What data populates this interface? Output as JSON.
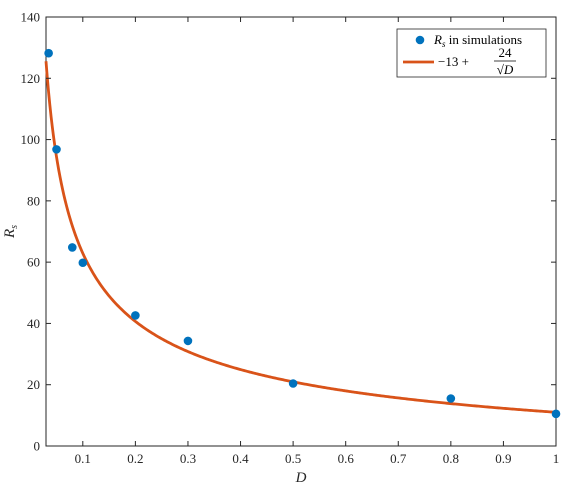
{
  "chart_data": {
    "type": "scatter",
    "xlabel": "D",
    "ylabel": "R",
    "ylabel_sub": "s",
    "xlim": [
      0.03,
      1.0
    ],
    "ylim": [
      0,
      140
    ],
    "xticks": [
      0.1,
      0.2,
      0.3,
      0.4,
      0.5,
      0.6,
      0.7,
      0.8,
      0.9,
      1
    ],
    "xtick_labels": [
      "0.1",
      "0.2",
      "0.3",
      "0.4",
      "0.5",
      "0.6",
      "0.7",
      "0.8",
      "0.9",
      "1"
    ],
    "yticks": [
      0,
      20,
      40,
      60,
      80,
      100,
      120,
      140
    ],
    "ytick_labels": [
      "0",
      "20",
      "40",
      "60",
      "80",
      "100",
      "120",
      "140"
    ],
    "grid": false,
    "legend_position": "top-right",
    "series": [
      {
        "name": "R_s in simulations",
        "legend_parts": {
          "symbol": "R",
          "sub": "s",
          "rest": " in simulations"
        },
        "kind": "scatter",
        "color": "#0072BD",
        "x": [
          0.035,
          0.05,
          0.08,
          0.1,
          0.2,
          0.3,
          0.5,
          0.8,
          1.0
        ],
        "y": [
          128.2,
          96.8,
          64.8,
          59.8,
          42.6,
          34.3,
          20.4,
          15.5,
          10.5
        ]
      },
      {
        "name": "-13 + 24/√D",
        "legend_parts": {
          "pre": "−13 + ",
          "num": "24",
          "den": "√D"
        },
        "kind": "line",
        "color": "#D95319",
        "function": {
          "a": -13,
          "b": 24,
          "x_start": 0.03,
          "x_end": 1.0
        }
      }
    ]
  }
}
